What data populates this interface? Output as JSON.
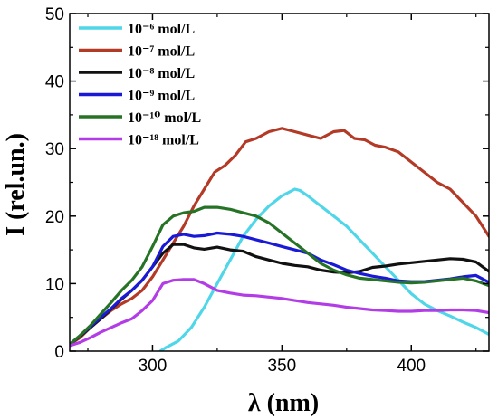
{
  "chart_data": {
    "type": "line",
    "xlabel": "λ (nm)",
    "ylabel": "I (rel.un.)",
    "xlim": [
      268,
      430
    ],
    "ylim": [
      0,
      50
    ],
    "xticks": [
      300,
      350,
      400
    ],
    "yticks": [
      0,
      10,
      20,
      30,
      40,
      50
    ],
    "grid": false,
    "legend_position": "top-left",
    "series": [
      {
        "name": "10⁻⁶ mol/L",
        "color": "#4fd6e8",
        "x": [
          303,
          305,
          310,
          315,
          320,
          325,
          330,
          335,
          340,
          345,
          350,
          355,
          357,
          360,
          365,
          370,
          375,
          380,
          385,
          390,
          395,
          400,
          405,
          410,
          415,
          420,
          425,
          430
        ],
        "y": [
          0,
          0.5,
          1.5,
          3.5,
          6.5,
          10,
          13.5,
          17,
          19.5,
          21.5,
          23,
          24,
          23.8,
          23,
          21.5,
          20,
          18.5,
          16.5,
          14.5,
          12.5,
          10.5,
          8.5,
          7,
          6,
          5.2,
          4.3,
          3.5,
          2.5
        ]
      },
      {
        "name": "10⁻⁷ mol/L",
        "color": "#b33a26",
        "x": [
          268,
          272,
          276,
          280,
          284,
          288,
          292,
          296,
          300,
          304,
          308,
          312,
          316,
          320,
          324,
          328,
          332,
          336,
          340,
          345,
          350,
          355,
          360,
          365,
          370,
          374,
          378,
          382,
          386,
          390,
          395,
          400,
          405,
          410,
          415,
          420,
          425,
          430
        ],
        "y": [
          1,
          2,
          3.5,
          4.8,
          6,
          7,
          7.8,
          9,
          11,
          13.5,
          16,
          18.5,
          21.5,
          24,
          26.5,
          27.5,
          29,
          31,
          31.5,
          32.5,
          33,
          32.5,
          32,
          31.5,
          32.5,
          32.7,
          31.5,
          31.3,
          30.5,
          30.2,
          29.5,
          28,
          26.5,
          25,
          24,
          22,
          20,
          17
        ]
      },
      {
        "name": "10⁻⁸ mol/L",
        "color": "#111111",
        "x": [
          268,
          272,
          276,
          280,
          284,
          288,
          292,
          296,
          300,
          304,
          308,
          312,
          316,
          320,
          325,
          330,
          335,
          340,
          345,
          350,
          355,
          360,
          365,
          370,
          375,
          380,
          385,
          390,
          395,
          400,
          405,
          410,
          415,
          420,
          425,
          430
        ],
        "y": [
          1,
          2.2,
          3.5,
          4.8,
          6.2,
          7.7,
          9,
          10.5,
          12.5,
          14.5,
          15.8,
          15.8,
          15.3,
          15.1,
          15.4,
          15,
          14.8,
          14,
          13.5,
          13,
          12.7,
          12.5,
          12,
          11.7,
          11.6,
          11.8,
          12.4,
          12.6,
          12.9,
          13.1,
          13.3,
          13.5,
          13.7,
          13.6,
          13.2,
          11.8
        ]
      },
      {
        "name": "10⁻⁹ mol/L",
        "color": "#1a1ad6",
        "x": [
          268,
          272,
          276,
          280,
          284,
          288,
          292,
          296,
          300,
          304,
          308,
          312,
          316,
          320,
          325,
          330,
          335,
          340,
          345,
          350,
          355,
          360,
          365,
          370,
          375,
          380,
          385,
          390,
          395,
          400,
          405,
          410,
          415,
          420,
          425,
          430
        ],
        "y": [
          1,
          2.3,
          3.6,
          5,
          6.3,
          7.8,
          9,
          10.5,
          12.5,
          15.5,
          17,
          17.3,
          17,
          17.1,
          17.5,
          17.3,
          17,
          16.5,
          16,
          15.5,
          15,
          14.5,
          13.5,
          12.8,
          12,
          11.5,
          11.1,
          10.8,
          10.4,
          10.3,
          10.3,
          10.5,
          10.7,
          11,
          11.2,
          10.2
        ]
      },
      {
        "name": "10⁻¹⁰ mol/L",
        "color": "#267326",
        "x": [
          268,
          272,
          276,
          280,
          284,
          288,
          292,
          296,
          300,
          304,
          308,
          312,
          316,
          320,
          325,
          330,
          335,
          340,
          345,
          350,
          355,
          360,
          365,
          370,
          375,
          380,
          385,
          390,
          395,
          400,
          405,
          410,
          415,
          420,
          425,
          430
        ],
        "y": [
          1,
          2.3,
          3.8,
          5.5,
          7.2,
          9,
          10.5,
          12.5,
          15.5,
          18.7,
          20,
          20.5,
          20.7,
          21.3,
          21.3,
          21,
          20.5,
          20,
          19,
          17.5,
          16,
          14.5,
          13,
          12,
          11.3,
          10.8,
          10.6,
          10.4,
          10.2,
          10.1,
          10.2,
          10.4,
          10.6,
          10.8,
          10.4,
          9.7
        ]
      },
      {
        "name": "10⁻¹⁸ mol/L",
        "color": "#b23de6",
        "x": [
          268,
          272,
          276,
          280,
          284,
          288,
          292,
          296,
          300,
          304,
          308,
          312,
          316,
          320,
          325,
          330,
          335,
          340,
          345,
          350,
          355,
          360,
          365,
          370,
          375,
          380,
          385,
          390,
          395,
          400,
          405,
          410,
          415,
          420,
          425,
          430
        ],
        "y": [
          0.8,
          1.3,
          2,
          2.8,
          3.5,
          4.2,
          4.8,
          6,
          7.5,
          10,
          10.5,
          10.6,
          10.6,
          10,
          9,
          8.6,
          8.3,
          8.2,
          8,
          7.8,
          7.5,
          7.2,
          7,
          6.8,
          6.5,
          6.3,
          6.1,
          6,
          5.9,
          5.9,
          6,
          6,
          6.1,
          6.1,
          6,
          5.7
        ]
      }
    ]
  }
}
